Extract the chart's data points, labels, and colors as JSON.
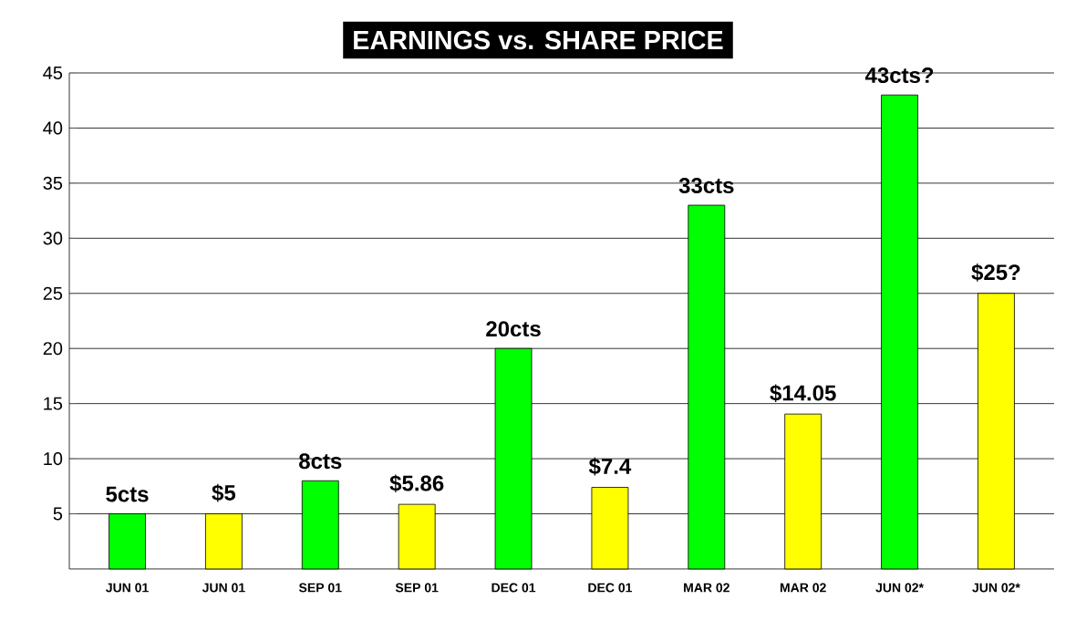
{
  "chart_data": {
    "type": "bar",
    "title": "EARNINGS vs. SHARE PRICE",
    "categories": [
      "JUN 01",
      "JUN 01",
      "SEP 01",
      "SEP 01",
      "DEC 01",
      "DEC 01",
      "MAR 02",
      "MAR 02",
      "JUN 02*",
      "JUN 02*"
    ],
    "values": [
      5,
      5,
      8,
      5.86,
      20,
      7.4,
      33,
      14.05,
      43,
      25
    ],
    "value_labels": [
      "5cts",
      "$5",
      "8cts",
      "$5.86",
      "20cts",
      "$7.4",
      "33cts",
      "$14.05",
      "43cts?",
      "$25?"
    ],
    "colors": [
      "#00ff00",
      "#ffff00",
      "#00ff00",
      "#ffff00",
      "#00ff00",
      "#ffff00",
      "#00ff00",
      "#ffff00",
      "#00ff00",
      "#ffff00"
    ],
    "ylim": [
      0,
      45
    ],
    "yticks": [
      5,
      10,
      15,
      20,
      25,
      30,
      35,
      40,
      45
    ],
    "grid": "y"
  }
}
